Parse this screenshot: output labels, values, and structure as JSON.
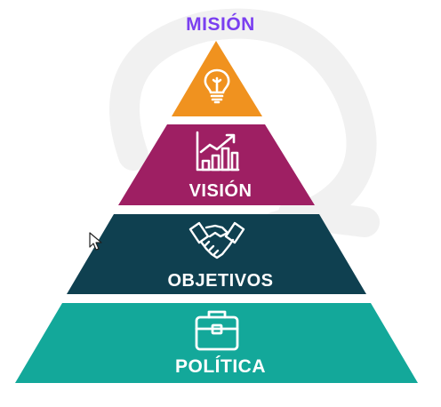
{
  "colors": {
    "mision_title": "#7a3ff0",
    "mision_fill": "#f0921f",
    "vision_fill": "#9e1f63",
    "objetivos_fill": "#0f4050",
    "politica_fill": "#13a89a",
    "icon_stroke": "#ffffff",
    "watermark": "#f1f1f1"
  },
  "pyramid": {
    "title": "MISIÓN",
    "tiers": [
      {
        "key": "mision",
        "label": "",
        "icon": "lightbulb-icon"
      },
      {
        "key": "vision",
        "label": "VISIÓN",
        "icon": "growth-chart-icon"
      },
      {
        "key": "objetivos",
        "label": "OBJETIVOS",
        "icon": "handshake-icon"
      },
      {
        "key": "politica",
        "label": "POLÍTICA",
        "icon": "briefcase-icon"
      }
    ]
  }
}
